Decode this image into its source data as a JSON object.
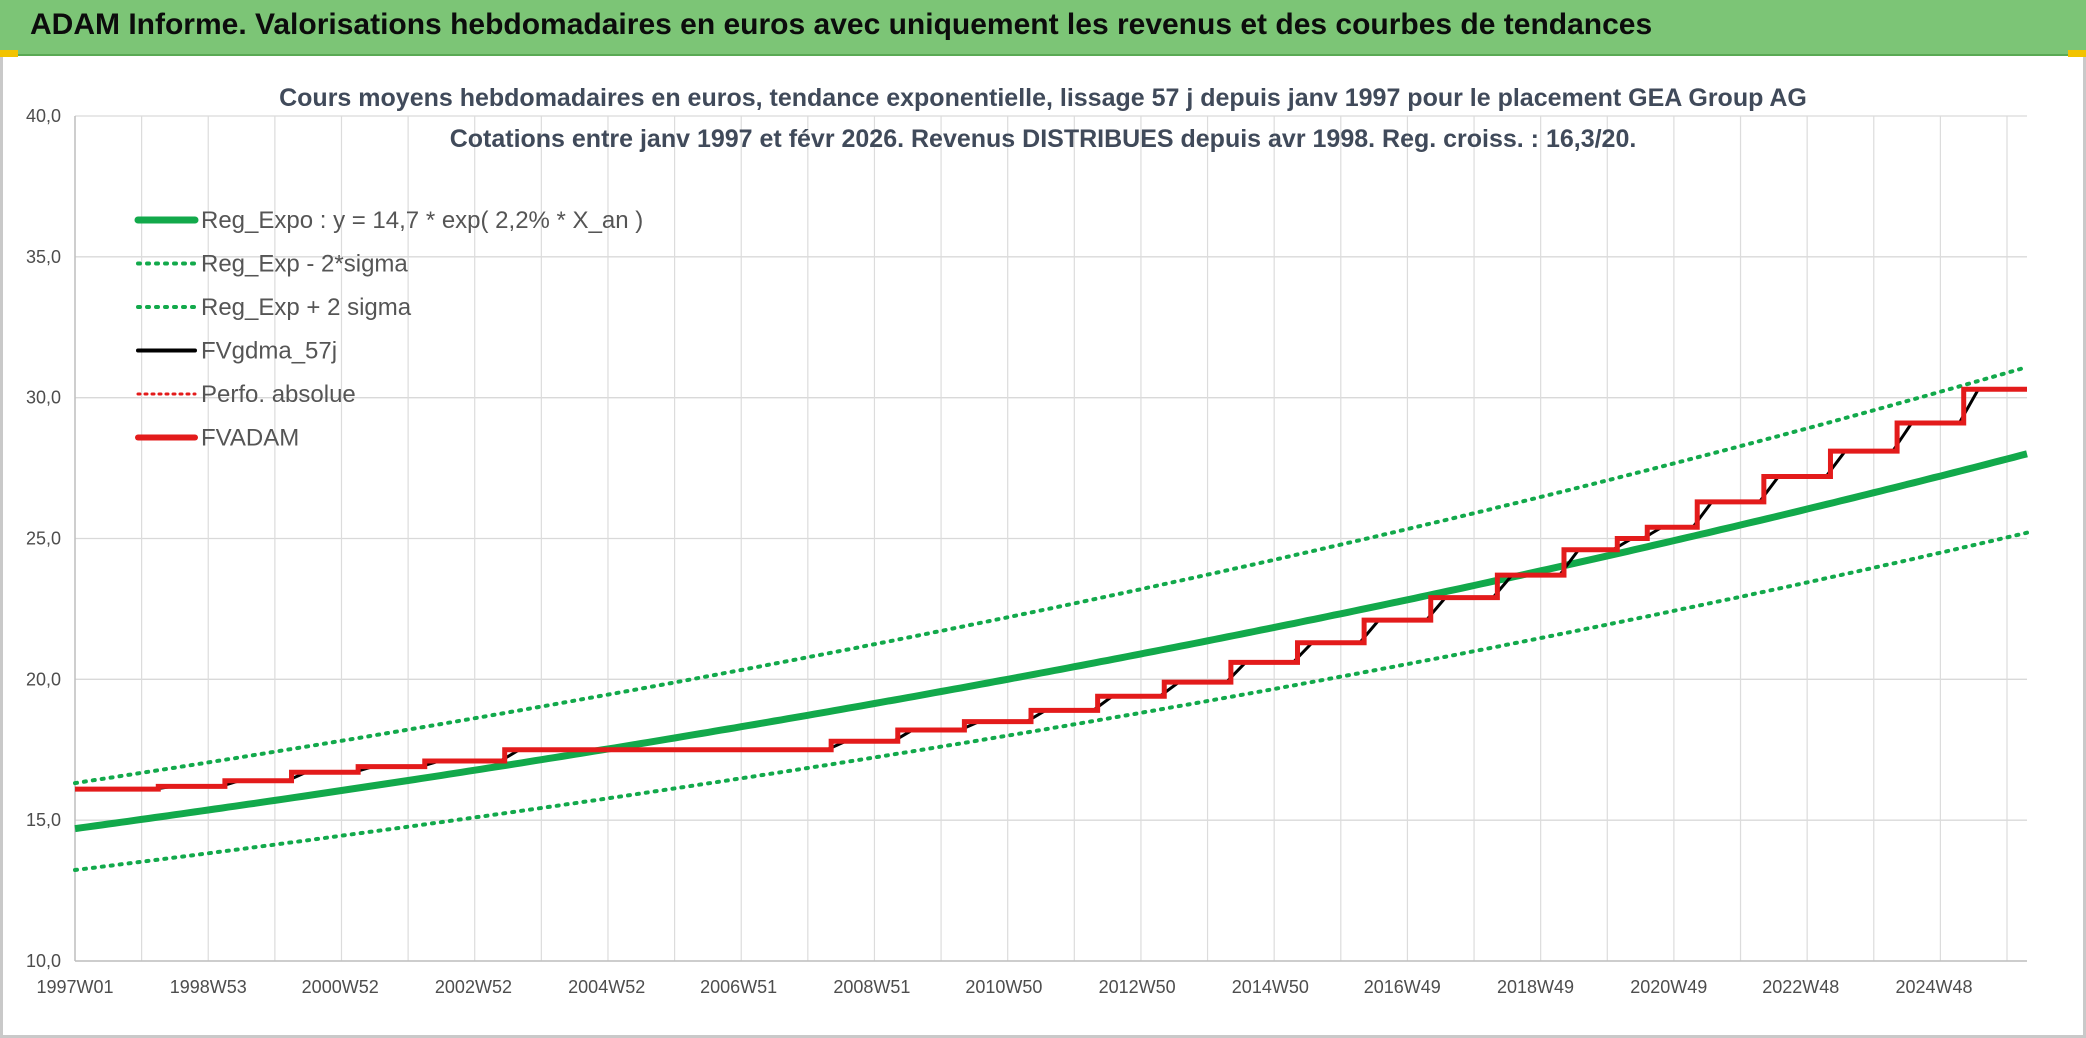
{
  "header": {
    "title": "ADAM Informe. Valorisations hebdomadaires en euros avec uniquement les revenus et des courbes de tendances"
  },
  "colors": {
    "banner": "#7cc576",
    "green": "#12a94b",
    "black": "#000000",
    "red": "#e31b1b"
  },
  "chart_data": {
    "type": "line",
    "title_line1": "Cours moyens hebdomadaires en euros, tendance exponentielle, lissage 57 j depuis janv 1997 pour le placement GEA Group AG",
    "title_line2": "Cotations entre janv 1997 et févr 2026. Revenus DISTRIBUES depuis avr 1998. Reg. croiss. : 16,3/20.",
    "ylim": [
      10,
      40
    ],
    "xlim": [
      1997.0,
      2026.3
    ],
    "yticks": [
      "10,0",
      "15,0",
      "20,0",
      "25,0",
      "30,0",
      "35,0",
      "40,0"
    ],
    "xticks": [
      "1997W01",
      "1998W53",
      "2000W52",
      "2002W52",
      "2004W52",
      "2006W51",
      "2008W51",
      "2010W50",
      "2012W50",
      "2014W50",
      "2016W49",
      "2018W49",
      "2020W49",
      "2022W48",
      "2024W48"
    ],
    "legend": [
      {
        "label": "Reg_Expo : y = 14,7 * exp( 2,2% *  X_an )",
        "style": "solid-green"
      },
      {
        "label": "Reg_Exp - 2*sigma",
        "style": "dotted-green"
      },
      {
        "label": "Reg_Exp + 2 sigma",
        "style": "dotted-green"
      },
      {
        "label": "FVgdma_57j",
        "style": "solid-black"
      },
      {
        "label": "Perfo. absolue",
        "style": "dotted-red"
      },
      {
        "label": "FVADAM",
        "style": "solid-red"
      }
    ],
    "regression": {
      "a": 14.7,
      "rate": 0.022,
      "lower_factor": 0.9,
      "upper_factor": 1.11
    },
    "fvadam_steps": [
      {
        "year": 1997.0,
        "value": 16.1
      },
      {
        "year": 1998.25,
        "value": 16.2
      },
      {
        "year": 1999.25,
        "value": 16.4
      },
      {
        "year": 2000.25,
        "value": 16.7
      },
      {
        "year": 2001.25,
        "value": 16.9
      },
      {
        "year": 2002.25,
        "value": 17.1
      },
      {
        "year": 2003.45,
        "value": 17.5
      },
      {
        "year": 2008.35,
        "value": 17.8
      },
      {
        "year": 2009.35,
        "value": 18.2
      },
      {
        "year": 2010.35,
        "value": 18.5
      },
      {
        "year": 2011.35,
        "value": 18.9
      },
      {
        "year": 2012.35,
        "value": 19.4
      },
      {
        "year": 2013.35,
        "value": 19.9
      },
      {
        "year": 2014.35,
        "value": 20.6
      },
      {
        "year": 2015.35,
        "value": 21.3
      },
      {
        "year": 2016.35,
        "value": 22.1
      },
      {
        "year": 2017.35,
        "value": 22.9
      },
      {
        "year": 2018.35,
        "value": 23.7
      },
      {
        "year": 2019.35,
        "value": 24.6
      },
      {
        "year": 2020.15,
        "value": 25.0
      },
      {
        "year": 2020.6,
        "value": 25.4
      },
      {
        "year": 2021.35,
        "value": 26.3
      },
      {
        "year": 2022.35,
        "value": 27.2
      },
      {
        "year": 2023.35,
        "value": 28.1
      },
      {
        "year": 2024.35,
        "value": 29.1
      },
      {
        "year": 2025.35,
        "value": 30.3
      }
    ]
  }
}
